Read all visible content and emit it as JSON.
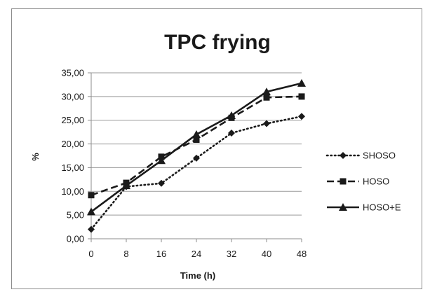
{
  "chart_data": {
    "type": "line",
    "title": "TPC frying",
    "xlabel": "Time (h)",
    "ylabel": "%",
    "x": [
      0,
      8,
      16,
      24,
      32,
      40,
      48
    ],
    "x_tick_labels": [
      "0",
      "8",
      "16",
      "24",
      "32",
      "40",
      "48"
    ],
    "ylim": [
      0,
      35
    ],
    "y_ticks": [
      0,
      5,
      10,
      15,
      20,
      25,
      30,
      35
    ],
    "y_tick_labels": [
      "0,00",
      "5,00",
      "10,00",
      "15,00",
      "20,00",
      "25,00",
      "30,00",
      "35,00"
    ],
    "grid": "horizontal",
    "legend_position": "right",
    "series": [
      {
        "name": "SHOSO",
        "values": [
          2.0,
          11.0,
          11.7,
          17.0,
          22.3,
          24.3,
          25.8
        ],
        "style": "dotted",
        "marker": "diamond",
        "color": "#1a1a1a"
      },
      {
        "name": "HOSO",
        "values": [
          9.2,
          11.8,
          17.3,
          20.9,
          25.5,
          29.8,
          30.0
        ],
        "style": "dashed",
        "marker": "square",
        "color": "#1a1a1a"
      },
      {
        "name": "HOSO+E",
        "values": [
          5.7,
          11.2,
          16.5,
          22.0,
          26.0,
          31.0,
          32.8
        ],
        "style": "solid",
        "marker": "triangle",
        "color": "#1a1a1a"
      }
    ]
  }
}
